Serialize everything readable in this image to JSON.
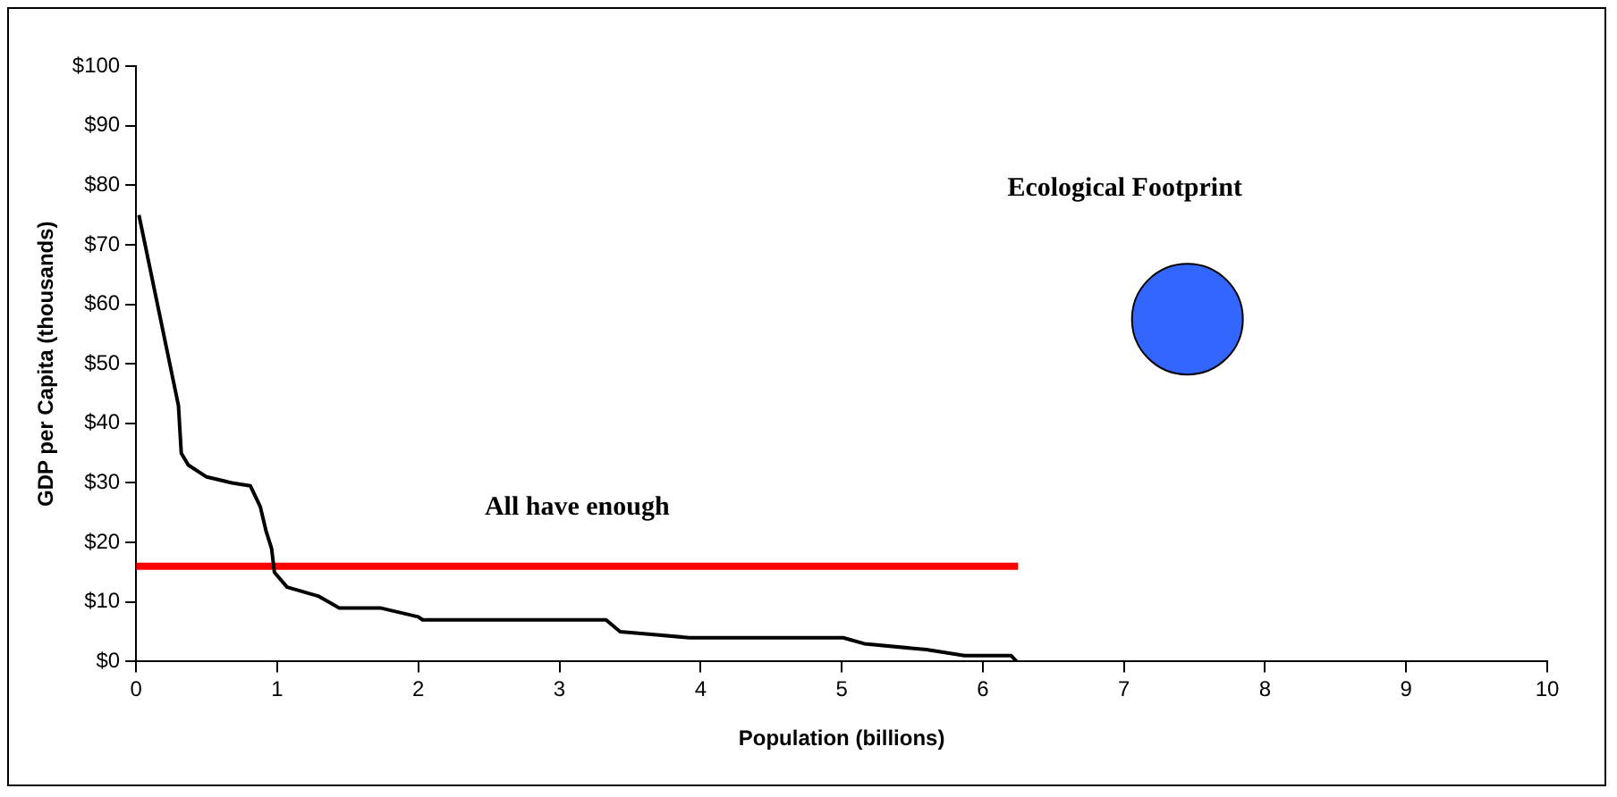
{
  "chart_data": {
    "type": "line",
    "xlabel": "Population (billions)",
    "ylabel": "GDP per Capita (thousands)",
    "xlim": [
      0,
      10
    ],
    "xticks": [
      0,
      1,
      2,
      3,
      4,
      5,
      6,
      7,
      8,
      9,
      10
    ],
    "ylim": [
      0,
      100
    ],
    "yticks": [
      {
        "value": 0,
        "label": "$0"
      },
      {
        "value": 10,
        "label": "$10"
      },
      {
        "value": 20,
        "label": "$20"
      },
      {
        "value": 30,
        "label": "$30"
      },
      {
        "value": 40,
        "label": "$40"
      },
      {
        "value": 50,
        "label": "$50"
      },
      {
        "value": 60,
        "label": "$60"
      },
      {
        "value": 70,
        "label": "$70"
      },
      {
        "value": 80,
        "label": "$80"
      },
      {
        "value": 90,
        "label": "$90"
      },
      {
        "value": 100,
        "label": "$100"
      }
    ],
    "grid": false,
    "legend": false,
    "series": [
      {
        "color": "#000000",
        "marker": "none",
        "x": [
          0.02,
          0.3,
          0.32,
          0.37,
          0.5,
          0.68,
          0.81,
          0.88,
          0.92,
          0.96,
          0.98,
          1.07,
          1.29,
          1.44,
          1.73,
          2.0,
          2.03,
          3.33,
          3.43,
          3.69,
          3.92,
          5.01,
          5.16,
          5.6,
          5.87,
          6.2,
          6.24
        ],
        "values": [
          75,
          43,
          35,
          33,
          31,
          30,
          29.5,
          26,
          22,
          19,
          15,
          12.5,
          11,
          9,
          9,
          7.5,
          7,
          7,
          5,
          4.5,
          4,
          4,
          3,
          2,
          1,
          1,
          0
        ]
      },
      {
        "name": "All have enough",
        "color": "#ff0000",
        "marker": "none",
        "x": [
          0,
          6.25
        ],
        "values": [
          16,
          16
        ]
      },
      {
        "name": "Ecological Footprint",
        "type": "bubble",
        "color": "#3366ff",
        "x": [
          7.45
        ],
        "values": [
          57.5
        ],
        "sizes": [
          1
        ]
      }
    ]
  }
}
